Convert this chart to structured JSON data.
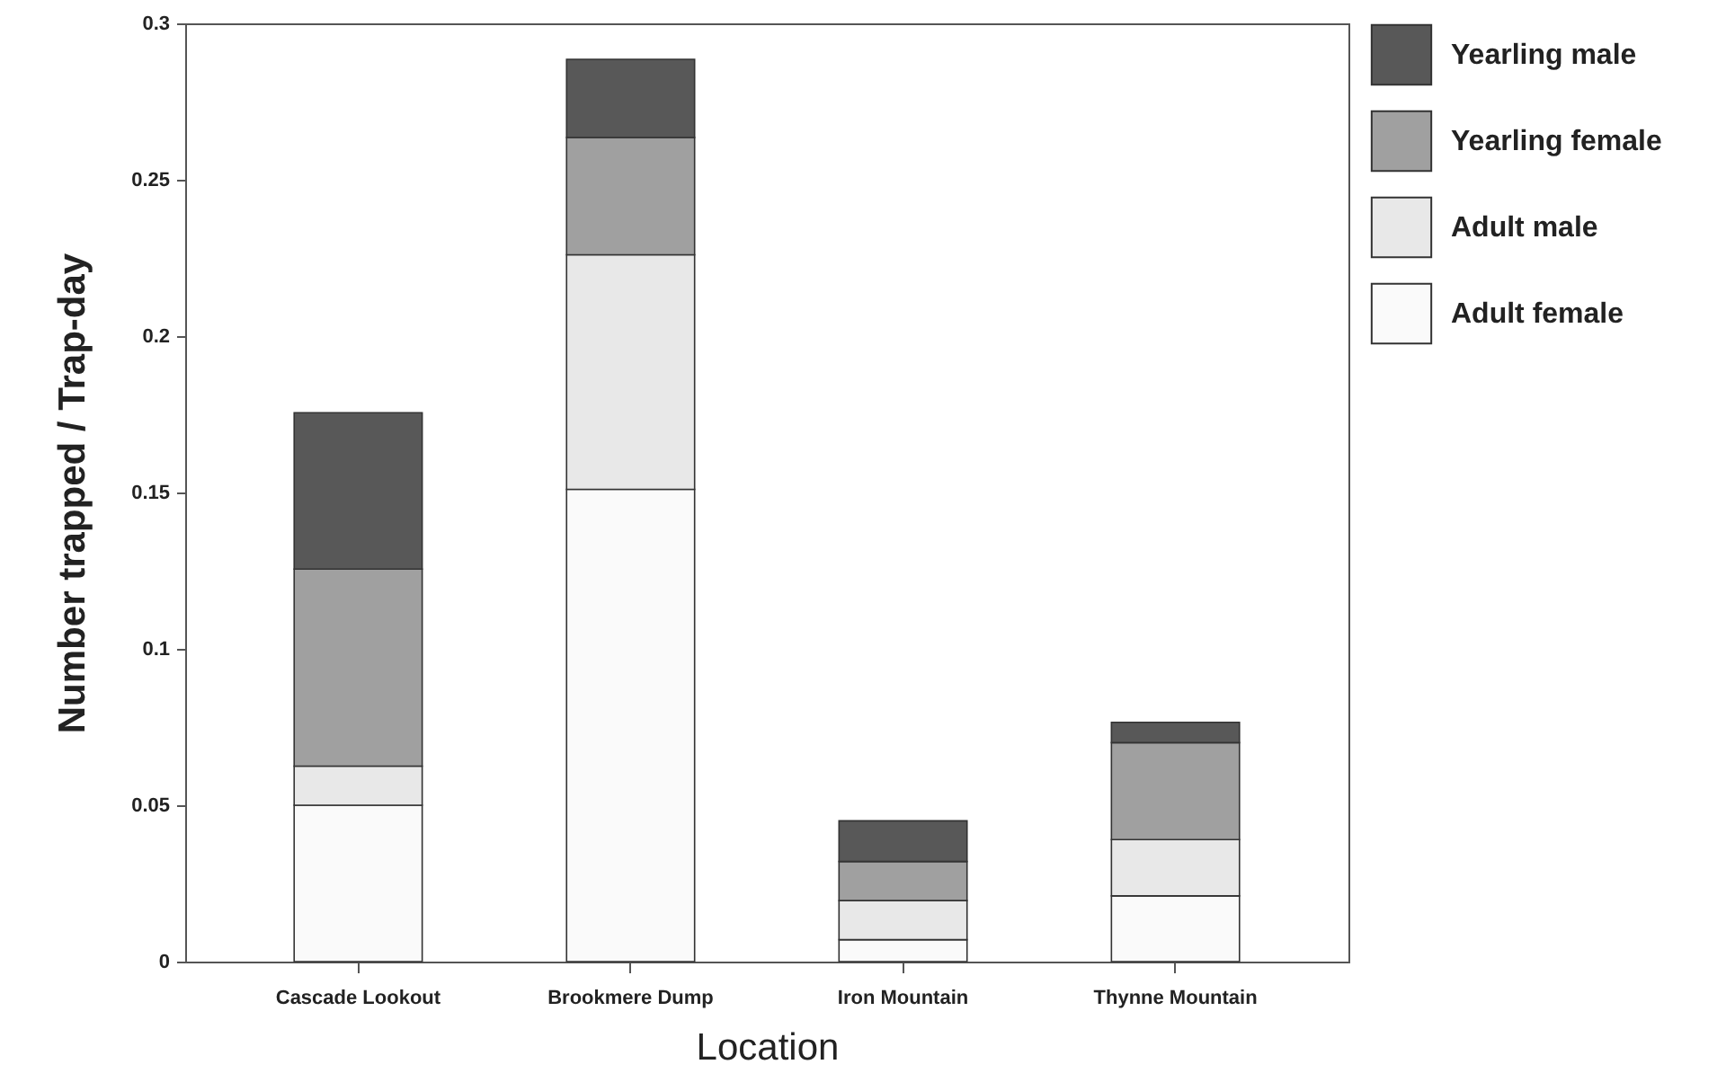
{
  "chart_data": {
    "type": "bar",
    "stacked": true,
    "xlabel": "Location",
    "ylabel": "Number trapped / Trap-day",
    "categories": [
      "Cascade Lookout",
      "Brookmere Dump",
      "Iron Mountain",
      "Thynne Mountain"
    ],
    "series": [
      {
        "name": "Adult female",
        "color": "#fafafa",
        "values": [
          0.05,
          0.151,
          0.007,
          0.021
        ]
      },
      {
        "name": "Adult male",
        "color": "#e8e8e8",
        "values": [
          0.0125,
          0.075,
          0.0125,
          0.018
        ]
      },
      {
        "name": "Yearling female",
        "color": "#a0a0a0",
        "values": [
          0.063,
          0.0375,
          0.0125,
          0.031
        ]
      },
      {
        "name": "Yearling male",
        "color": "#585858",
        "values": [
          0.05,
          0.025,
          0.013,
          0.0065
        ]
      }
    ],
    "ylim": [
      0,
      0.3
    ],
    "yticks": [
      0,
      0.05,
      0.1,
      0.15,
      0.2,
      0.25,
      0.3
    ],
    "legend": "top right",
    "grid": false
  }
}
